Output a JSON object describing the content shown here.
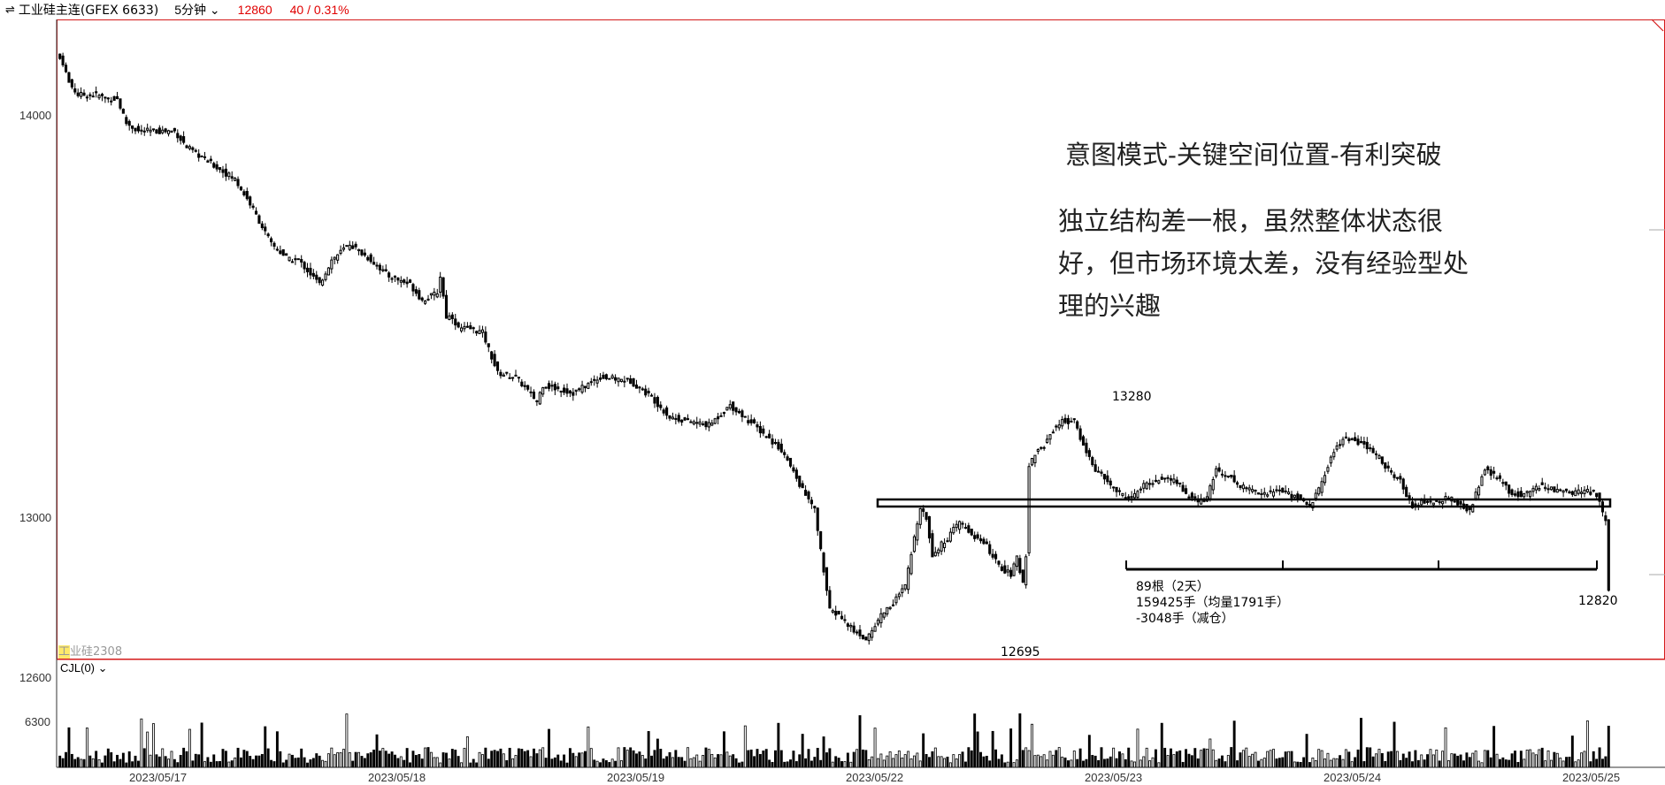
{
  "header": {
    "symbol": "工业硅主连(GFEX 6633)",
    "period": "5分钟",
    "price": "12860",
    "change": "40 / 0.31%",
    "up_color": "#e00000"
  },
  "overlay": {
    "title": "意图模式-关键空间位置-有利突破",
    "lines": [
      "独立结构差一根，虽然整体状态很",
      "好，但市场环境太差，没有经验型处",
      "理的兴趣"
    ]
  },
  "annotations": {
    "high": "13280",
    "low": "12695",
    "last": "12820",
    "stat1": "89根（2天）",
    "stat2": "159425手（均量1791手）",
    "stat3": "-3048手（减仓）"
  },
  "sub": {
    "contract_hl": "工",
    "contract_rest": "业硅2308",
    "indicator": "CJL(0)"
  },
  "chart_data": {
    "type": "candlestick",
    "yticks": [
      "14000",
      "13000"
    ],
    "ylim": [
      12650,
      14250
    ],
    "volume_ticks": [
      "12600",
      "6300"
    ],
    "volume_max": 12600,
    "xlabels": [
      "2023/05/17",
      "2023/05/18",
      "2023/05/19",
      "2023/05/22",
      "2023/05/23",
      "2023/05/24",
      "2023/05/25"
    ],
    "bars_per_day": 45,
    "anchors": [
      [
        0,
        14140
      ],
      [
        1,
        14130
      ],
      [
        3,
        14080
      ],
      [
        6,
        14050
      ],
      [
        12,
        14050
      ],
      [
        16,
        14040
      ],
      [
        19,
        14040
      ],
      [
        22,
        13980
      ],
      [
        26,
        13960
      ],
      [
        38,
        13960
      ],
      [
        42,
        13920
      ],
      [
        50,
        13880
      ],
      [
        58,
        13840
      ],
      [
        63,
        13780
      ],
      [
        70,
        13680
      ],
      [
        76,
        13640
      ],
      [
        79,
        13640
      ],
      [
        86,
        13580
      ],
      [
        90,
        13640
      ],
      [
        96,
        13680
      ],
      [
        103,
        13640
      ],
      [
        109,
        13600
      ],
      [
        116,
        13580
      ],
      [
        120,
        13540
      ],
      [
        123,
        13550
      ],
      [
        125,
        13560
      ],
      [
        126,
        13600
      ],
      [
        128,
        13500
      ],
      [
        130,
        13500
      ],
      [
        132,
        13470
      ],
      [
        136,
        13470
      ],
      [
        140,
        13460
      ],
      [
        145,
        13360
      ],
      [
        151,
        13350
      ],
      [
        158,
        13290
      ],
      [
        160,
        13330
      ],
      [
        170,
        13310
      ],
      [
        179,
        13350
      ],
      [
        189,
        13340
      ],
      [
        196,
        13300
      ],
      [
        202,
        13250
      ],
      [
        215,
        13230
      ],
      [
        222,
        13280
      ],
      [
        230,
        13230
      ],
      [
        239,
        13170
      ],
      [
        246,
        13070
      ],
      [
        250,
        13020
      ],
      [
        255,
        12770
      ],
      [
        258,
        12760
      ],
      [
        263,
        12720
      ],
      [
        267,
        12700
      ],
      [
        269,
        12720
      ],
      [
        272,
        12760
      ],
      [
        276,
        12790
      ],
      [
        279,
        12820
      ],
      [
        280,
        12830
      ],
      [
        285,
        13030
      ],
      [
        287,
        13000
      ],
      [
        289,
        12910
      ],
      [
        294,
        12950
      ],
      [
        298,
        12990
      ],
      [
        302,
        12960
      ],
      [
        307,
        12930
      ],
      [
        311,
        12880
      ],
      [
        315,
        12860
      ],
      [
        317,
        12900
      ],
      [
        319,
        12840
      ],
      [
        320,
        12910
      ],
      [
        321,
        13130
      ],
      [
        323,
        13160
      ],
      [
        326,
        13180
      ],
      [
        329,
        13220
      ],
      [
        332,
        13240
      ],
      [
        336,
        13240
      ],
      [
        339,
        13180
      ],
      [
        343,
        13120
      ],
      [
        347,
        13090
      ],
      [
        351,
        13060
      ],
      [
        355,
        13050
      ],
      [
        359,
        13080
      ],
      [
        362,
        13090
      ],
      [
        366,
        13100
      ],
      [
        370,
        13090
      ],
      [
        373,
        13060
      ],
      [
        377,
        13040
      ],
      [
        380,
        13050
      ],
      [
        383,
        13120
      ],
      [
        386,
        13110
      ],
      [
        391,
        13080
      ],
      [
        395,
        13070
      ],
      [
        400,
        13060
      ],
      [
        404,
        13070
      ],
      [
        410,
        13050
      ],
      [
        414,
        13030
      ],
      [
        417,
        13070
      ],
      [
        420,
        13130
      ],
      [
        423,
        13180
      ],
      [
        426,
        13200
      ],
      [
        432,
        13180
      ],
      [
        437,
        13150
      ],
      [
        441,
        13110
      ],
      [
        444,
        13090
      ],
      [
        448,
        13030
      ],
      [
        452,
        13040
      ],
      [
        456,
        13040
      ],
      [
        460,
        13050
      ],
      [
        464,
        13030
      ],
      [
        467,
        13020
      ],
      [
        469,
        13060
      ],
      [
        472,
        13120
      ],
      [
        476,
        13100
      ],
      [
        481,
        13060
      ],
      [
        486,
        13060
      ],
      [
        490,
        13080
      ],
      [
        495,
        13070
      ],
      [
        500,
        13060
      ],
      [
        505,
        13070
      ],
      [
        509,
        13060
      ],
      [
        512,
        12990
      ],
      [
        513,
        12820
      ]
    ],
    "volume_rules": [
      [
        310,
        220
      ],
      [
        320,
        520
      ],
      [
        321,
        270
      ],
      [
        428,
        680
      ],
      [
        450,
        300
      ],
      [
        467,
        480
      ],
      [
        488,
        1300
      ],
      [
        565,
        1800
      ],
      [
        580,
        650
      ],
      [
        620,
        1150
      ],
      [
        623,
        950
      ],
      [
        648,
        680
      ],
      [
        661,
        1000
      ],
      [
        678,
        300
      ],
      [
        712,
        600
      ],
      [
        739,
        230
      ],
      [
        740,
        220
      ],
      [
        757,
        1750
      ],
      [
        818,
        400
      ],
      [
        832,
        350
      ],
      [
        853,
        1550
      ],
      [
        860,
        200
      ],
      [
        982,
        750
      ],
      [
        1005,
        1300
      ],
      [
        1051,
        500
      ],
      [
        1094,
        420
      ],
      [
        1131,
        500
      ],
      [
        1191,
        750
      ],
      [
        1222,
        720
      ],
      [
        1268,
        450
      ],
      [
        1280,
        1250
      ],
      [
        1303,
        480
      ],
      [
        1335,
        380
      ],
      [
        1346,
        220
      ],
      [
        1392,
        1150
      ],
      [
        1417,
        830
      ],
      [
        1485,
        220
      ],
      [
        1537,
        660
      ],
      [
        1544,
        420
      ],
      [
        1586,
        240
      ],
      [
        1602,
        500
      ],
      [
        1680,
        280
      ],
      [
        1780,
        170
      ],
      [
        1798,
        790
      ],
      [
        1800,
        200
      ],
      [
        1830,
        1700
      ]
    ]
  }
}
